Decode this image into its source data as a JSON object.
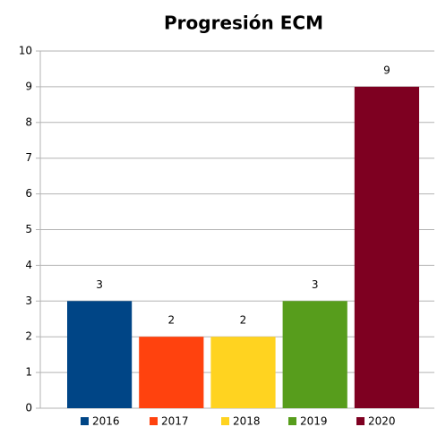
{
  "chart_data": {
    "type": "bar",
    "title": "Progresión ECM",
    "categories": [
      null
    ],
    "series": [
      {
        "name": "2016",
        "color": "#004586",
        "values": [
          3
        ]
      },
      {
        "name": "2017",
        "color": "#ff420e",
        "values": [
          2
        ]
      },
      {
        "name": "2018",
        "color": "#ffd320",
        "values": [
          2
        ]
      },
      {
        "name": "2019",
        "color": "#579d1c",
        "values": [
          3
        ]
      },
      {
        "name": "2020",
        "color": "#7e0021",
        "values": [
          9
        ]
      }
    ],
    "ylim": [
      0,
      10
    ],
    "yticks": [
      0,
      1,
      2,
      3,
      4,
      5,
      6,
      7,
      8,
      9,
      10
    ],
    "grid": true,
    "legend": "bottom"
  }
}
